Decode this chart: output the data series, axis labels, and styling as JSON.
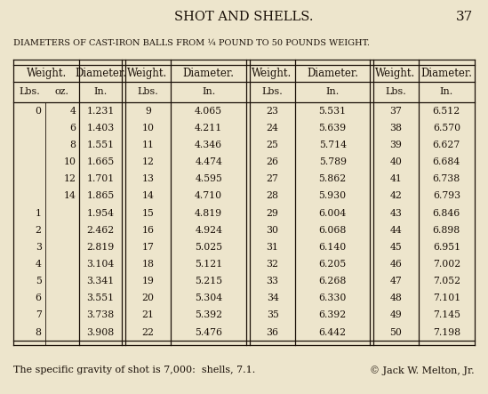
{
  "title": "SHOT AND SHELLS.",
  "page_number": "37",
  "subtitle": "DIAMETERS OF CAST-IRON BALLS FROM ¼ POUND TO 50 POUNDS WEIGHT.",
  "bg_color": "#ede5cc",
  "text_color": "#1a1008",
  "footer": "The specific gravity of shot is 7,000:  shells, 7.1.",
  "copyright": "© Jack W. Melton, Jr.",
  "rows": [
    [
      "0",
      "4",
      "1.231",
      "9",
      "4.065",
      "23",
      "5.531",
      "37",
      "6.512"
    ],
    [
      "",
      "6",
      "1.403",
      "10",
      "4.211",
      "24",
      "5.639",
      "38",
      "6.570"
    ],
    [
      "",
      "8",
      "1.551",
      "11",
      "4.346",
      "25",
      "5.714",
      "39",
      "6.627"
    ],
    [
      "",
      "10",
      "1.665",
      "12",
      "4.474",
      "26",
      "5.789",
      "40",
      "6.684"
    ],
    [
      "",
      "12",
      "1.701",
      "13",
      "4.595",
      "27",
      "5.862",
      "41",
      "6.738"
    ],
    [
      "",
      "14",
      "1.865",
      "14",
      "4.710",
      "28",
      "5.930",
      "42",
      "6.793"
    ],
    [
      "1",
      "",
      "1.954",
      "15",
      "4.819",
      "29",
      "6.004",
      "43",
      "6.846"
    ],
    [
      "2",
      "",
      "2.462",
      "16",
      "4.924",
      "30",
      "6.068",
      "44",
      "6.898"
    ],
    [
      "3",
      "",
      "2.819",
      "17",
      "5.025",
      "31",
      "6.140",
      "45",
      "6.951"
    ],
    [
      "4",
      "",
      "3.104",
      "18",
      "5.121",
      "32",
      "6.205",
      "46",
      "7.002"
    ],
    [
      "5",
      "",
      "3.341",
      "19",
      "5.215",
      "33",
      "6.268",
      "47",
      "7.052"
    ],
    [
      "6",
      "",
      "3.551",
      "20",
      "5.304",
      "34",
      "6.330",
      "48",
      "7.101"
    ],
    [
      "7",
      "",
      "3.738",
      "21",
      "5.392",
      "35",
      "6.392",
      "49",
      "7.145"
    ],
    [
      "8",
      "",
      "3.908",
      "22",
      "5.476",
      "36",
      "6.442",
      "50",
      "7.198"
    ]
  ]
}
